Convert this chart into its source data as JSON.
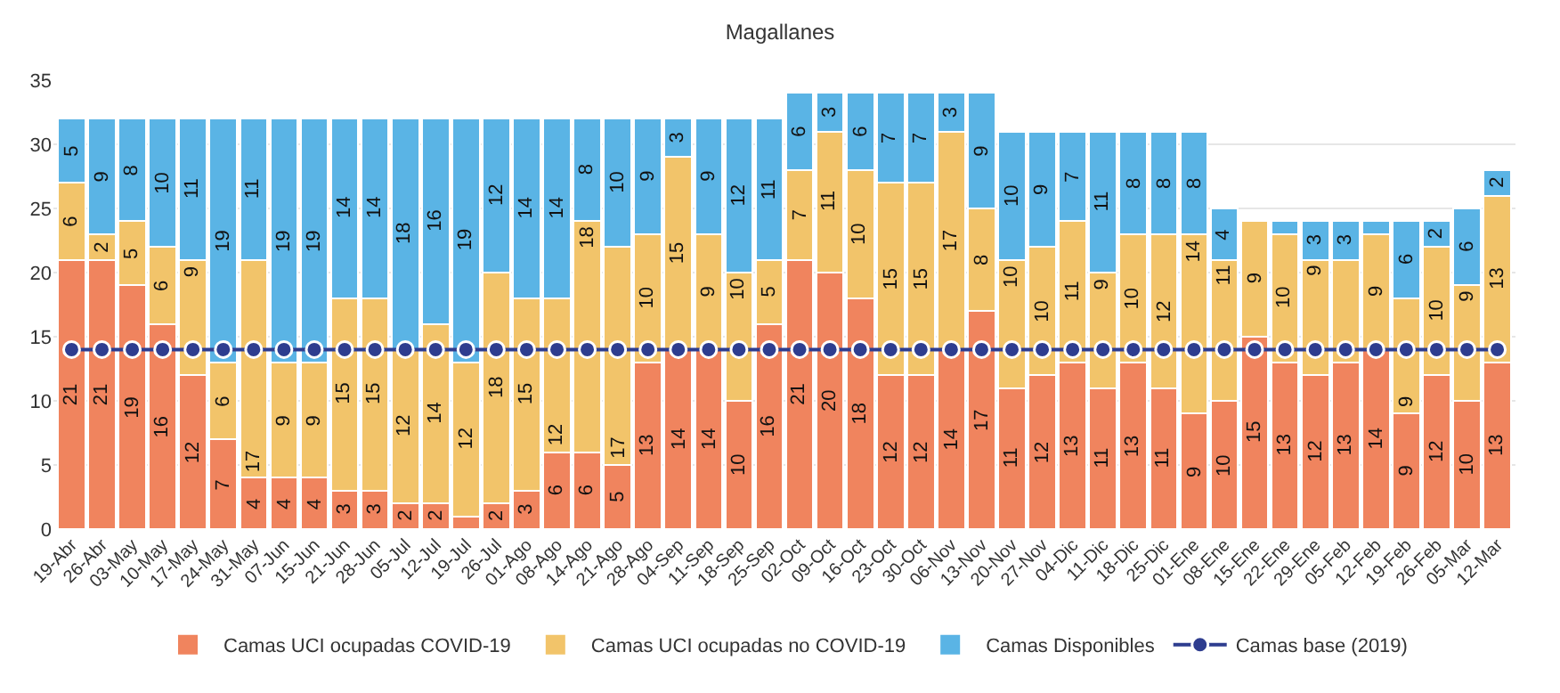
{
  "chart_data": {
    "type": "bar",
    "title": "Magallanes",
    "stacked": true,
    "grid": "y",
    "legend": "bottom",
    "categories": [
      "19-Abr",
      "26-Abr",
      "03-May",
      "10-May",
      "17-May",
      "24-May",
      "31-May",
      "07-Jun",
      "15-Jun",
      "21-Jun",
      "28-Jun",
      "05-Jul",
      "12-Jul",
      "19-Jul",
      "26-Jul",
      "01-Ago",
      "08-Ago",
      "14-Ago",
      "21-Ago",
      "28-Ago",
      "04-Sep",
      "11-Sep",
      "18-Sep",
      "25-Sep",
      "02-Oct",
      "09-Oct",
      "16-Oct",
      "23-Oct",
      "30-Oct",
      "06-Nov",
      "13-Nov",
      "20-Nov",
      "27-Nov",
      "04-Dic",
      "11-Dic",
      "18-Dic",
      "25-Dic",
      "01-Ene",
      "08-Ene",
      "15-Ene",
      "22-Ene",
      "29-Ene",
      "05-Feb",
      "12-Feb",
      "19-Feb",
      "26-Feb",
      "05-Mar",
      "12-Mar"
    ],
    "ylim": [
      0,
      35
    ],
    "yticks": [
      0,
      5,
      10,
      15,
      20,
      25,
      30,
      35
    ],
    "series": [
      {
        "name": "Camas UCI ocupadas COVID-19",
        "color": "#f0845e",
        "values": [
          21,
          21,
          19,
          16,
          12,
          7,
          4,
          4,
          4,
          3,
          3,
          2,
          2,
          1,
          2,
          3,
          6,
          6,
          5,
          13,
          14,
          14,
          10,
          16,
          21,
          20,
          18,
          12,
          12,
          14,
          17,
          11,
          12,
          13,
          11,
          13,
          11,
          9,
          10,
          15,
          13,
          12,
          13,
          14,
          9,
          12,
          10,
          13
        ],
        "value_labels": [
          "21",
          "21",
          "19",
          "16",
          "12",
          "7",
          "4",
          "4",
          "4",
          "3",
          "3",
          "2",
          "2",
          null,
          "2",
          "3",
          "6",
          "6",
          "5",
          "13",
          "14",
          "14",
          "10",
          "16",
          "21",
          "20",
          "18",
          "12",
          "12",
          "14",
          "17",
          "11",
          "12",
          "13",
          "11",
          "13",
          "11",
          "9",
          "10",
          "15",
          "13",
          "12",
          "13",
          "14",
          "9",
          "12",
          "10",
          "13"
        ]
      },
      {
        "name": "Camas UCI ocupadas no COVID-19",
        "color": "#f2c46a",
        "values": [
          6,
          2,
          5,
          6,
          9,
          6,
          17,
          9,
          9,
          15,
          15,
          12,
          14,
          12,
          18,
          15,
          12,
          18,
          17,
          10,
          15,
          9,
          10,
          5,
          7,
          11,
          10,
          15,
          15,
          17,
          8,
          10,
          10,
          11,
          9,
          10,
          12,
          14,
          11,
          9,
          10,
          9,
          8,
          9,
          9,
          10,
          9,
          13
        ],
        "value_labels": [
          "6",
          "2",
          "5",
          "6",
          "9",
          "6",
          "17",
          "9",
          "9",
          "15",
          "15",
          "12",
          "14",
          "12",
          "18",
          "15",
          "12",
          "18",
          "17",
          "10",
          "15",
          "9",
          "10",
          "5",
          "7",
          "11",
          "10",
          "15",
          "15",
          "17",
          "8",
          "10",
          "10",
          "11",
          "9",
          "10",
          "12",
          "14",
          "11",
          "9",
          "10",
          "9",
          null,
          "9",
          "9",
          "10",
          "9",
          "13"
        ]
      },
      {
        "name": "Camas Disponibles",
        "color": "#5ab4e5",
        "values": [
          5,
          9,
          8,
          10,
          11,
          19,
          11,
          19,
          19,
          14,
          14,
          18,
          16,
          19,
          12,
          14,
          14,
          8,
          10,
          9,
          3,
          9,
          12,
          11,
          6,
          3,
          6,
          7,
          7,
          3,
          9,
          10,
          9,
          7,
          11,
          8,
          8,
          8,
          4,
          null,
          1,
          3,
          3,
          1,
          6,
          2,
          6,
          2
        ],
        "value_labels": [
          "5",
          "9",
          "8",
          "10",
          "11",
          "19",
          "11",
          "19",
          "19",
          "14",
          "14",
          "18",
          "16",
          "19",
          "12",
          "14",
          "14",
          "8",
          "10",
          "9",
          "3",
          "9",
          "12",
          "11",
          "6",
          "3",
          "6",
          "7",
          "7",
          "3",
          "9",
          "10",
          "9",
          "7",
          "11",
          "8",
          "8",
          "8",
          "4",
          null,
          null,
          "3",
          "3",
          null,
          "6",
          "2",
          "6",
          "2"
        ]
      },
      {
        "name": "Camas base (2019)",
        "type": "line",
        "color": "#2e3d8f",
        "marker": "circle",
        "line_style": "solid",
        "values": [
          14,
          14,
          14,
          14,
          14,
          14,
          14,
          14,
          14,
          14,
          14,
          14,
          14,
          14,
          14,
          14,
          14,
          14,
          14,
          14,
          14,
          14,
          14,
          14,
          14,
          14,
          14,
          14,
          14,
          14,
          14,
          14,
          14,
          14,
          14,
          14,
          14,
          14,
          14,
          14,
          14,
          14,
          14,
          14,
          14,
          14,
          14,
          14
        ]
      }
    ]
  }
}
